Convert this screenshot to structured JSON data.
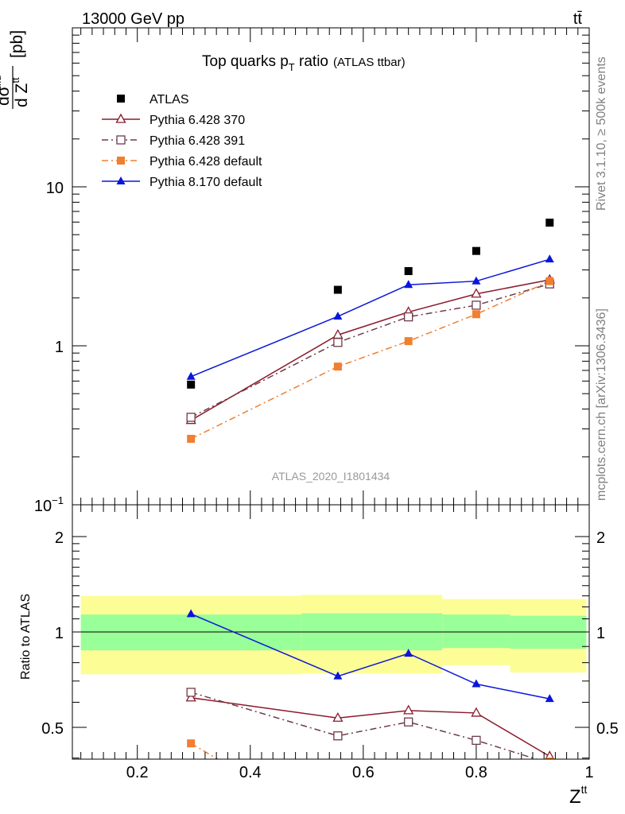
{
  "header": {
    "collision": "13000 GeV pp",
    "process": "tt̄",
    "rivet": "Rivet 3.1.10, ≥ 500k events",
    "source": "mcplots.cern.ch [arXiv:1306.3436]",
    "analysis": "ATLAS_2020_I1801434"
  },
  "chart_data": [
    {
      "type": "scatter",
      "title": "Top quarks p",
      "title_sub": "T",
      "title_tail": " ratio",
      "title_note": "(ATLAS ttbar)",
      "ylabel_top": "dσ",
      "ylabel_top_sup": "fid",
      "ylabel_bottom": "d Z",
      "ylabel_bottom_sup": "tt",
      "ylabel_unit": "[pb]",
      "yscale": "log",
      "ylim": [
        0.1,
        100
      ],
      "xlim": [
        0.085,
        1.0
      ],
      "yticks": [
        {
          "v": 0.1,
          "base": "10",
          "exp": "−1"
        },
        {
          "v": 1,
          "base": "1",
          "exp": ""
        },
        {
          "v": 10,
          "base": "10",
          "exp": ""
        }
      ],
      "legend_position": "top-left",
      "series": [
        {
          "name": "ATLAS",
          "color": "#000000",
          "marker": "square",
          "line": "none",
          "x": [
            0.295,
            0.555,
            0.68,
            0.8,
            0.93
          ],
          "y": [
            0.57,
            2.25,
            2.95,
            3.95,
            5.95
          ]
        },
        {
          "name": "Pythia 6.428 370",
          "color": "#8b1a2b",
          "marker": "triangle-open",
          "line": "solid",
          "x": [
            0.295,
            0.555,
            0.68,
            0.8,
            0.93
          ],
          "y": [
            0.34,
            1.17,
            1.63,
            2.12,
            2.6
          ]
        },
        {
          "name": "Pythia 6.428 391",
          "color": "#6e3b48",
          "marker": "square-open",
          "line": "dashdot",
          "x": [
            0.295,
            0.555,
            0.68,
            0.8,
            0.93
          ],
          "y": [
            0.355,
            1.05,
            1.52,
            1.8,
            2.45
          ]
        },
        {
          "name": "Pythia 6.428 default",
          "color": "#f07f30",
          "marker": "square",
          "line": "dashdot",
          "x": [
            0.295,
            0.555,
            0.68,
            0.8,
            0.93
          ],
          "y": [
            0.26,
            0.74,
            1.07,
            1.58,
            2.55
          ]
        },
        {
          "name": "Pythia 8.170 default",
          "color": "#0a16d8",
          "marker": "triangle",
          "line": "solid",
          "x": [
            0.295,
            0.555,
            0.68,
            0.8,
            0.93
          ],
          "y": [
            0.64,
            1.53,
            2.42,
            2.55,
            3.5
          ]
        }
      ]
    },
    {
      "type": "line",
      "ylabel": "Ratio to ATLAS",
      "xlabel": "Z",
      "xlabel_sup": "tt",
      "ylim": [
        0.35,
        2.3
      ],
      "xlim": [
        0.085,
        1.0
      ],
      "xticks": [
        "0.2",
        "0.4",
        "0.6",
        "0.8",
        "1"
      ],
      "yticks": [
        "0.5",
        "1",
        "2"
      ],
      "bands": [
        {
          "x0": 0.1,
          "x1": 0.49,
          "green": [
            0.875,
            1.135
          ],
          "yellow": [
            0.735,
            1.3
          ]
        },
        {
          "x0": 0.49,
          "x1": 0.74,
          "green": [
            0.875,
            1.145
          ],
          "yellow": [
            0.74,
            1.31
          ]
        },
        {
          "x0": 0.74,
          "x1": 0.86,
          "green": [
            0.89,
            1.135
          ],
          "yellow": [
            0.785,
            1.27
          ]
        },
        {
          "x0": 0.86,
          "x1": 0.995,
          "green": [
            0.885,
            1.125
          ],
          "yellow": [
            0.745,
            1.27
          ]
        }
      ],
      "series": [
        {
          "name": "Pythia 6.428 370",
          "color": "#8b1a2b",
          "marker": "triangle-open",
          "line": "solid",
          "x": [
            0.295,
            0.555,
            0.68,
            0.8,
            0.93
          ],
          "y": [
            0.62,
            0.535,
            0.565,
            0.555,
            0.405
          ]
        },
        {
          "name": "Pythia 6.428 391",
          "color": "#6e3b48",
          "marker": "square-open",
          "line": "dashdot",
          "x": [
            0.295,
            0.555,
            0.68,
            0.8,
            0.93
          ],
          "y": [
            0.645,
            0.47,
            0.52,
            0.455,
            0.385
          ]
        },
        {
          "name": "Pythia 6.428 default",
          "color": "#f07f30",
          "marker": "square",
          "line": "dashdot",
          "x": [
            0.295,
            0.4,
            0.8,
            0.93
          ],
          "y": [
            0.445,
            0.345,
            0.35,
            0.39
          ]
        },
        {
          "name": "Pythia 8.170 default",
          "color": "#0a16d8",
          "marker": "triangle",
          "line": "solid",
          "x": [
            0.295,
            0.555,
            0.68,
            0.8,
            0.93
          ],
          "y": [
            1.14,
            0.725,
            0.855,
            0.685,
            0.615
          ]
        }
      ]
    }
  ]
}
